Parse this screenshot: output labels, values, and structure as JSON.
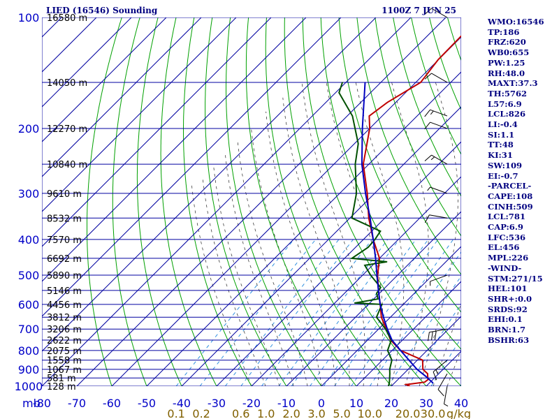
{
  "header": {
    "station": "LIED (16546) Sounding",
    "time": "1100Z  7 JUN 25"
  },
  "indices": [
    "WMO:16546",
    "TP:186",
    "FRZ:620",
    "WB0:655",
    "PW:1.25",
    "RH:48.0",
    "MAXT:37.3",
    "TH:5762",
    "L57:6.9",
    "LCL:826",
    "LI:-0.4",
    "SI:1.1",
    "TT:48",
    "KI:31",
    "SW:109",
    "EI:-0.7",
    "-PARCEL-",
    "CAPE:108",
    "CINH:509",
    "LCL:781",
    "CAP:6.9",
    "LFC:536",
    "EL:456",
    "MPL:226",
    "-WIND-",
    "STM:271/15",
    "HEL:101",
    "SHR+:0.0",
    "SRDS:92",
    "EHI:0.1",
    "BRN:1.7",
    "BSHR:63"
  ],
  "colors": {
    "isobar": "#0000a0",
    "isotherm": "#0000a0",
    "dry_adiabat": "#00a000",
    "moist_adiabat": "#404040",
    "mixing_ratio": "#3090e0",
    "temperature": "#c00000",
    "dewpoint": "#005000",
    "parcel": "#0000c0",
    "wind_barb": "#000000"
  },
  "chart_data": {
    "type": "line",
    "title": "LIED (16546) Sounding",
    "y_axis": {
      "unit_label": "mb",
      "scale": "log",
      "range": [
        1000,
        100
      ],
      "ticks": [
        100,
        200,
        300,
        400,
        500,
        600,
        700,
        800,
        900,
        1000
      ]
    },
    "x_axis": {
      "unit": "°C",
      "range": [
        -80,
        40
      ],
      "ticks": [
        "-80",
        "-70",
        "-60",
        "-50",
        "-40",
        "-30",
        "-20",
        "-10",
        "0",
        "10",
        "20",
        "30",
        "40"
      ]
    },
    "mixing_ratio_axis": {
      "unit": "g/kg",
      "ticks": [
        "0.1",
        "0.2",
        "0.6",
        "1.0",
        "2.0",
        "3.0",
        "5.0",
        "10.0",
        "20.0",
        "30.0"
      ]
    },
    "heights": [
      {
        "p": 100,
        "label": "16580 m"
      },
      {
        "p": 150,
        "label": "14050 m"
      },
      {
        "p": 200,
        "label": "12270 m"
      },
      {
        "p": 250,
        "label": "10840 m"
      },
      {
        "p": 300,
        "label": "9610 m"
      },
      {
        "p": 350,
        "label": "8532 m"
      },
      {
        "p": 400,
        "label": "7570 m"
      },
      {
        "p": 450,
        "label": "6692 m"
      },
      {
        "p": 500,
        "label": "5890 m"
      },
      {
        "p": 550,
        "label": "5146 m"
      },
      {
        "p": 600,
        "label": "4456 m"
      },
      {
        "p": 650,
        "label": "3812 m"
      },
      {
        "p": 700,
        "label": "3206 m"
      },
      {
        "p": 750,
        "label": "2622 m"
      },
      {
        "p": 800,
        "label": "2075 m"
      },
      {
        "p": 850,
        "label": "1558 m"
      },
      {
        "p": 900,
        "label": "1067 m"
      },
      {
        "p": 950,
        "label": "581 m"
      },
      {
        "p": 1000,
        "label": "128 m"
      }
    ],
    "series": [
      {
        "key": "temperature",
        "points": [
          [
            1000,
            25.3
          ],
          [
            990,
            23.8
          ],
          [
            975,
            28.4
          ],
          [
            960,
            28.6
          ],
          [
            925,
            26.8
          ],
          [
            900,
            24.2
          ],
          [
            850,
            21.5
          ],
          [
            800,
            12.4
          ],
          [
            750,
            6.6
          ],
          [
            700,
            2.2
          ],
          [
            650,
            -2.6
          ],
          [
            600,
            -6.6
          ],
          [
            550,
            -11.1
          ],
          [
            500,
            -15.7
          ],
          [
            450,
            -20.0
          ],
          [
            400,
            -27.2
          ],
          [
            350,
            -34.6
          ],
          [
            300,
            -42.1
          ],
          [
            250,
            -51.6
          ],
          [
            200,
            -60.0
          ],
          [
            185,
            -63.7
          ],
          [
            170,
            -62.4
          ],
          [
            150,
            -58.6
          ],
          [
            130,
            -60.1
          ],
          [
            110,
            -60.3
          ],
          [
            100,
            -60.3
          ]
        ]
      },
      {
        "key": "dewpoint",
        "points": [
          [
            1000,
            19.2
          ],
          [
            975,
            18.3
          ],
          [
            925,
            16.0
          ],
          [
            900,
            14.7
          ],
          [
            850,
            12.7
          ],
          [
            800,
            8.7
          ],
          [
            750,
            6.8
          ],
          [
            700,
            2.0
          ],
          [
            650,
            -4.0
          ],
          [
            600,
            -6.1
          ],
          [
            595,
            -14.3
          ],
          [
            580,
            -8.8
          ],
          [
            560,
            -10.8
          ],
          [
            540,
            -11.3
          ],
          [
            500,
            -17.7
          ],
          [
            470,
            -22.2
          ],
          [
            460,
            -16.9
          ],
          [
            450,
            -27.9
          ],
          [
            420,
            -26.4
          ],
          [
            400,
            -26.7
          ],
          [
            380,
            -27.5
          ],
          [
            350,
            -39.4
          ],
          [
            300,
            -45.2
          ],
          [
            250,
            -53.9
          ],
          [
            220,
            -58.9
          ],
          [
            185,
            -68.5
          ],
          [
            160,
            -79.0
          ],
          [
            150,
            -81.0
          ]
        ]
      },
      {
        "key": "parcel",
        "points": [
          [
            980,
            31.0
          ],
          [
            940,
            27.0
          ],
          [
            900,
            22.5
          ],
          [
            850,
            17.6
          ],
          [
            800,
            12.4
          ],
          [
            750,
            7.0
          ],
          [
            700,
            2.5
          ],
          [
            650,
            -2.0
          ],
          [
            600,
            -6.6
          ],
          [
            550,
            -11.1
          ],
          [
            500,
            -15.9
          ],
          [
            450,
            -21.1
          ],
          [
            400,
            -27.2
          ],
          [
            350,
            -34.2
          ],
          [
            300,
            -42.6
          ],
          [
            250,
            -52.0
          ],
          [
            200,
            -62.1
          ],
          [
            150,
            -74.5
          ]
        ]
      }
    ],
    "wind_barbs": [
      {
        "p": 100,
        "dir": 300,
        "spd": 10
      },
      {
        "p": 150,
        "dir": 300,
        "spd": 10
      },
      {
        "p": 185,
        "dir": 290,
        "spd": 15
      },
      {
        "p": 200,
        "dir": 290,
        "spd": 10
      },
      {
        "p": 250,
        "dir": 300,
        "spd": 15
      },
      {
        "p": 300,
        "dir": 290,
        "spd": 5
      },
      {
        "p": 350,
        "dir": 280,
        "spd": 10
      },
      {
        "p": 500,
        "dir": 250,
        "spd": 5
      },
      {
        "p": 700,
        "dir": 260,
        "spd": 30
      },
      {
        "p": 850,
        "dir": 230,
        "spd": 15
      },
      {
        "p": 925,
        "dir": 210,
        "spd": 10
      },
      {
        "p": 1000,
        "dir": 190,
        "spd": 5
      }
    ]
  }
}
